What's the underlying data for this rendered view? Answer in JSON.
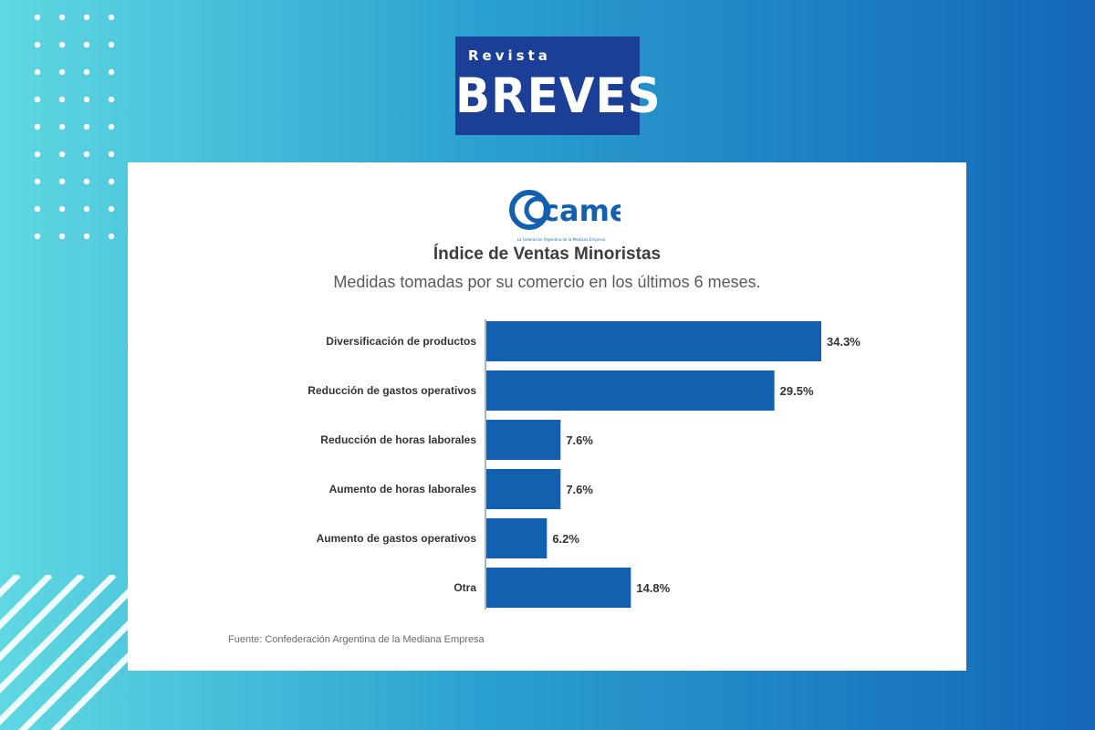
{
  "brand": {
    "small_text": "Revista",
    "big_text": "BREVES",
    "color": "#1b3f97"
  },
  "card": {
    "logo_text": "came",
    "logo_tagline": "La Federación Argentina de la Mediana Empresa",
    "accent": "#1460b0",
    "source": "Fuente: Confederación Argentina de la Mediana Empresa"
  },
  "decor": {
    "dots_icon": "dot-grid",
    "stripes_icon": "diagonal-stripes"
  },
  "chart_data": {
    "type": "bar",
    "orientation": "horizontal",
    "title": "Índice de Ventas Minoristas",
    "subtitle": "Medidas tomadas por su comercio en los últimos 6 meses.",
    "categories": [
      "Diversificación de productos",
      "Reducción de gastos operativos",
      "Reducción de horas laborales",
      "Aumento de horas laborales",
      "Aumento de gastos operativos",
      "Otra"
    ],
    "values": [
      34.3,
      29.5,
      7.6,
      7.6,
      6.2,
      14.8
    ],
    "value_labels": [
      "34.3%",
      "29.5%",
      "7.6%",
      "7.6%",
      "6.2%",
      "14.8%"
    ],
    "bar_color": "#1460b0",
    "xlim": [
      0,
      34.3
    ],
    "grid": false,
    "legend": "none"
  }
}
